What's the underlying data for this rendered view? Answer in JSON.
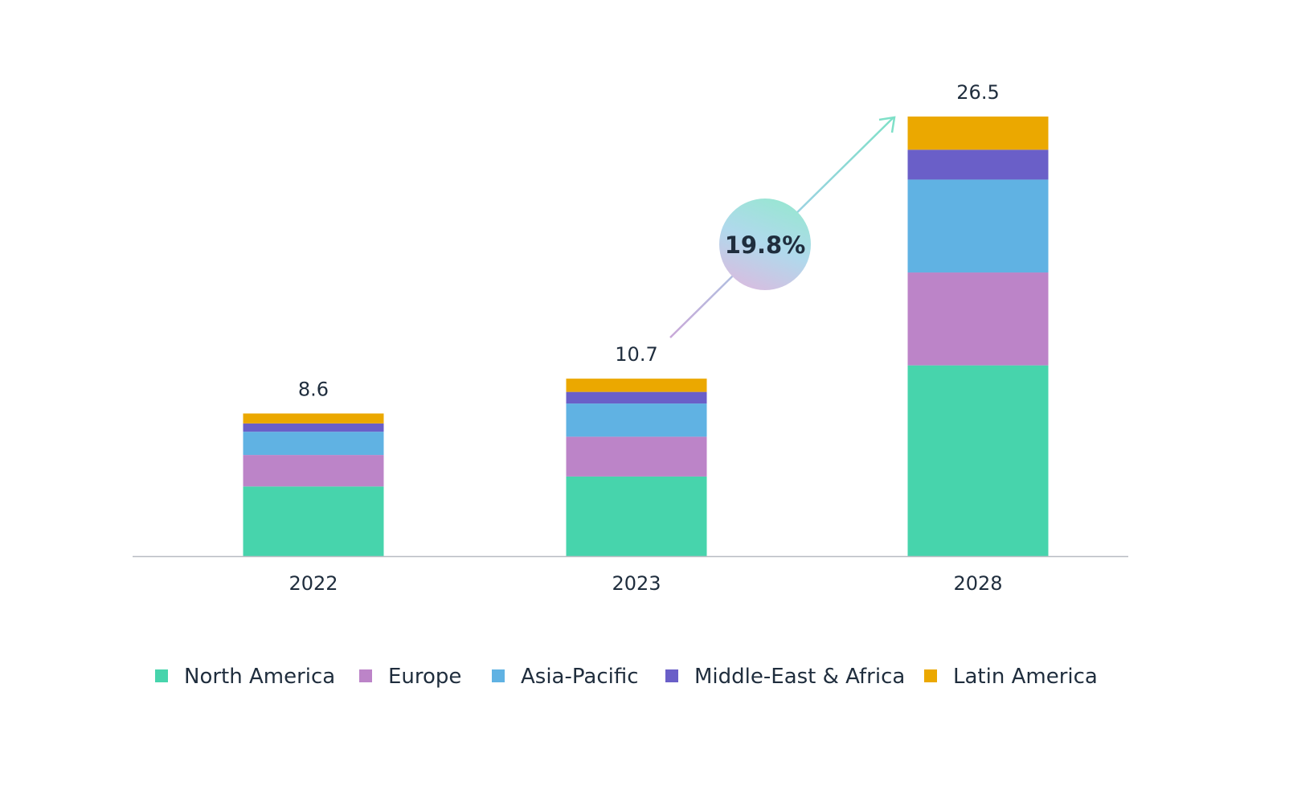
{
  "chart_data": {
    "type": "bar",
    "stacked": true,
    "categories": [
      "2022",
      "2023",
      "2028"
    ],
    "totals": [
      "8.6",
      "10.7",
      "26.5"
    ],
    "series": [
      {
        "name": "North America",
        "color": "#47d4ac",
        "values": [
          4.2,
          4.8,
          11.5
        ]
      },
      {
        "name": "Europe",
        "color": "#bc84c8",
        "values": [
          1.9,
          2.4,
          5.6
        ]
      },
      {
        "name": "Asia-Pacific",
        "color": "#60b2e3",
        "values": [
          1.4,
          2.0,
          5.6
        ]
      },
      {
        "name": "Middle-East & Africa",
        "color": "#6a5fc8",
        "values": [
          0.5,
          0.7,
          1.8
        ]
      },
      {
        "name": "Latin America",
        "color": "#eba800",
        "values": [
          0.6,
          0.8,
          2.0
        ]
      }
    ],
    "annotation": {
      "text": "19.8%",
      "from": "2023",
      "to": "2028"
    },
    "legend_position": "bottom",
    "grid": false,
    "ylim": [
      0,
      26.5
    ]
  }
}
